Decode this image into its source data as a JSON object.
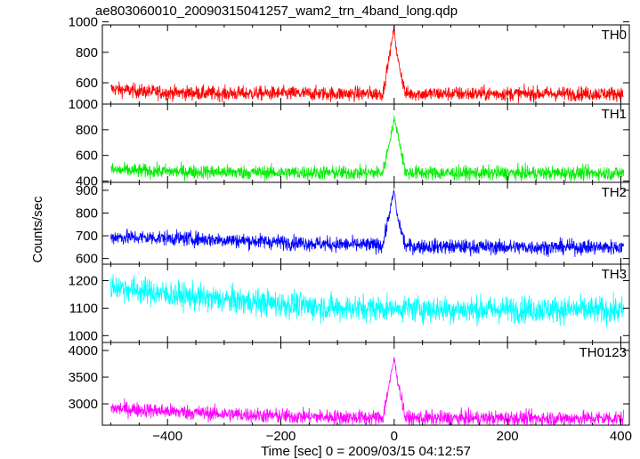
{
  "chart_data": {
    "type": "line",
    "title": "ae803060010_20090315041257_wam2_trn_4band_long.qdp",
    "xlabel": "Time [sec] 0 = 2009/03/15 04:12:57",
    "ylabel": "Counts/sec",
    "xlim": [
      -515,
      415
    ],
    "x_ticks": [
      -400,
      -200,
      0,
      200,
      400
    ],
    "grid": false,
    "panels": [
      {
        "name": "TH0",
        "color": "#ff0000",
        "ylim": [
          460,
          980
        ],
        "y_ticks": [
          600,
          800,
          1000
        ],
        "data": {
          "x": [
            -500,
            -450,
            -400,
            -300,
            -200,
            -100,
            -20,
            0,
            5,
            20,
            100,
            200,
            300,
            405
          ],
          "y": [
            560,
            545,
            535,
            530,
            530,
            528,
            528,
            960,
            780,
            528,
            528,
            528,
            528,
            528
          ]
        }
      },
      {
        "name": "TH1",
        "color": "#00ee00",
        "ylim": [
          390,
          1000
        ],
        "y_ticks": [
          400,
          600,
          800,
          1000
        ],
        "data": {
          "x": [
            -500,
            -400,
            -300,
            -200,
            -100,
            -20,
            0,
            5,
            20,
            100,
            200,
            300,
            405
          ],
          "y": [
            485,
            475,
            470,
            465,
            465,
            465,
            880,
            800,
            465,
            462,
            462,
            462,
            462
          ]
        }
      },
      {
        "name": "TH2",
        "color": "#0000ff",
        "ylim": [
          575,
          935
        ],
        "y_ticks": [
          600,
          700,
          800,
          900
        ],
        "data": {
          "x": [
            -500,
            -400,
            -300,
            -200,
            -100,
            -20,
            0,
            5,
            20,
            100,
            200,
            300,
            405
          ],
          "y": [
            695,
            690,
            682,
            672,
            662,
            658,
            900,
            790,
            655,
            652,
            650,
            650,
            650
          ]
        }
      },
      {
        "name": "TH3",
        "color": "#00ffff",
        "ylim": [
          975,
          1260
        ],
        "y_ticks": [
          1000,
          1100,
          1200
        ],
        "data": {
          "x": [
            -500,
            -400,
            -300,
            -200,
            -100,
            0,
            100,
            200,
            300,
            405
          ],
          "y": [
            1180,
            1150,
            1130,
            1115,
            1100,
            1100,
            1095,
            1095,
            1095,
            1090
          ]
        }
      },
      {
        "name": "TH0123",
        "color": "#ff00ff",
        "ylim": [
          2600,
          4150
        ],
        "y_ticks": [
          3000,
          3500,
          4000
        ],
        "data": {
          "x": [
            -500,
            -400,
            -300,
            -200,
            -100,
            -20,
            0,
            5,
            20,
            100,
            200,
            300,
            405
          ],
          "y": [
            2920,
            2860,
            2810,
            2770,
            2750,
            2740,
            3850,
            3500,
            2730,
            2730,
            2730,
            2730,
            2730
          ]
        }
      }
    ]
  }
}
